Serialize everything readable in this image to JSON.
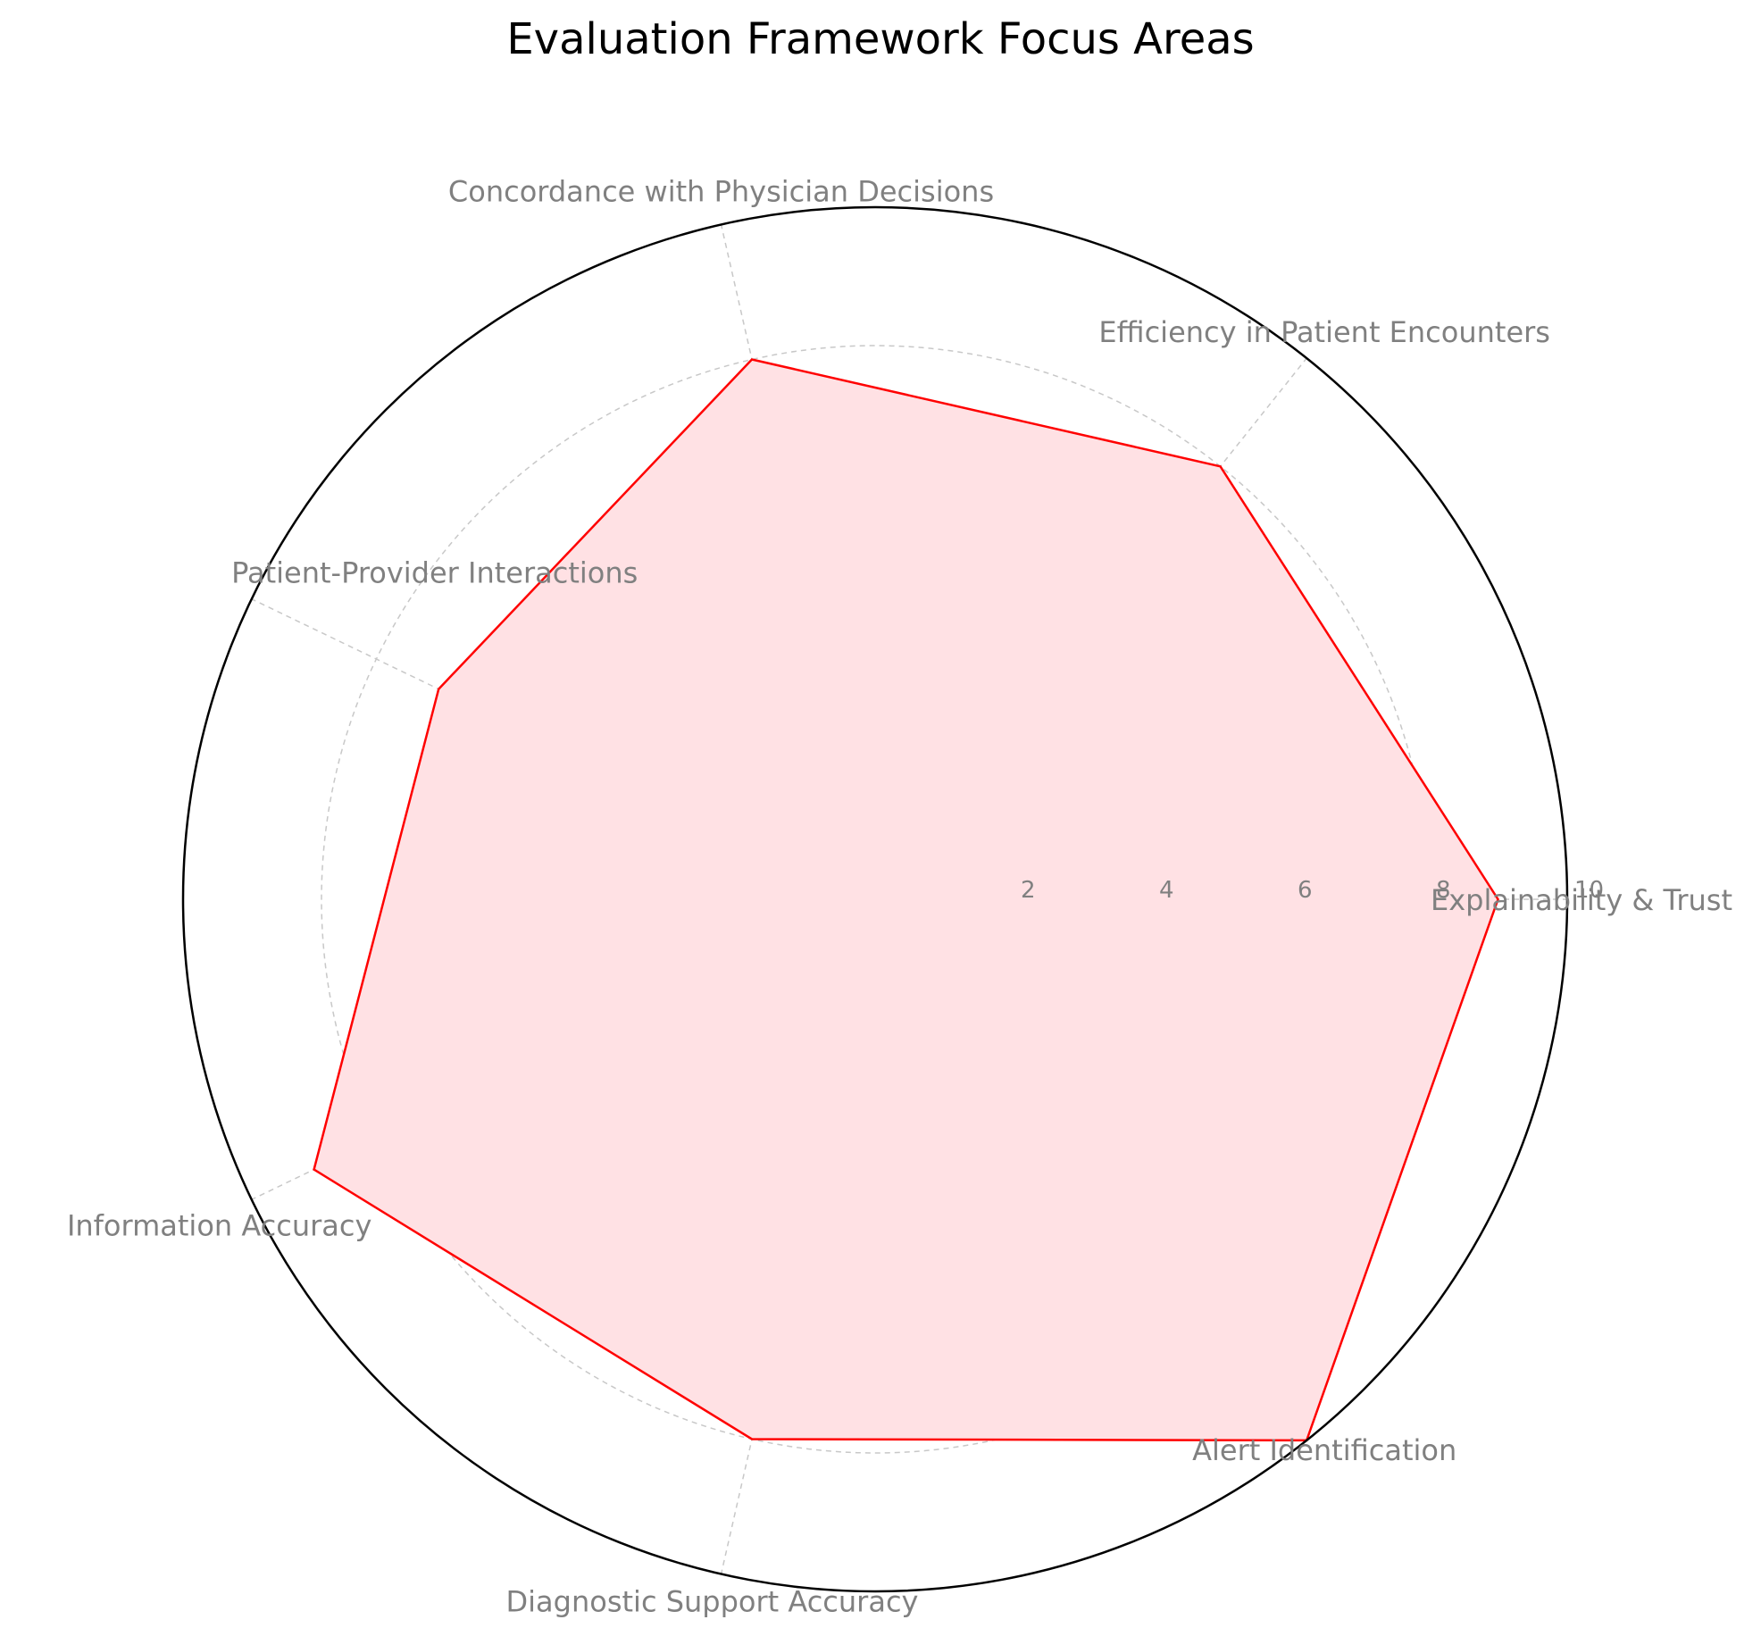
{
  "chart_data": {
    "type": "radar",
    "title": "Evaluation Framework Focus Areas",
    "categories": [
      "Explainability & Trust",
      "Efficiency in Patient Encounters",
      "Concordance with Physician Decisions",
      "Patient-Provider Interactions",
      "Information Accuracy",
      "Diagnostic Support Accuracy",
      "Alert Identification"
    ],
    "series": [
      {
        "values": [
          9,
          8,
          8,
          7,
          9,
          8,
          10
        ]
      }
    ],
    "rlim": [
      0,
      10
    ],
    "rticks": [
      "2",
      "4",
      "6",
      "8",
      "10"
    ],
    "grid": true,
    "colors": {
      "line": "#ff0000",
      "fill": "#ffe1e4",
      "grid": "#c8c8c8",
      "frame": "#000000",
      "text": "#808080"
    }
  }
}
